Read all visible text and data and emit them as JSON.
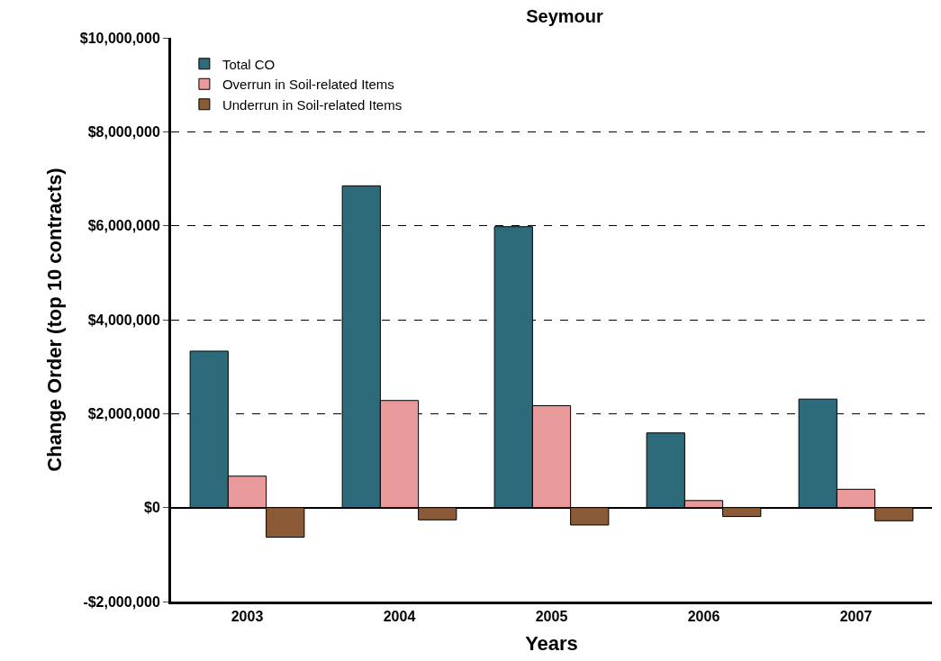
{
  "chart_data": {
    "type": "bar",
    "title": "Seymour",
    "xlabel": "Years",
    "ylabel": "Change Order (top 10 contracts)",
    "categories": [
      "2003",
      "2004",
      "2005",
      "2006",
      "2007"
    ],
    "series": [
      {
        "name": "Total CO",
        "color": "#2e6b7a",
        "values": [
          3330000,
          6850000,
          5980000,
          1590000,
          2310000
        ]
      },
      {
        "name": "Overrun in Soil-related Items",
        "color": "#e89a9a",
        "values": [
          670000,
          2280000,
          2170000,
          150000,
          390000
        ]
      },
      {
        "name": "Underrun in Soil-related Items",
        "color": "#8b5a36",
        "values": [
          -630000,
          -260000,
          -370000,
          -190000,
          -280000
        ]
      }
    ],
    "ylim": [
      -2000000,
      10000000
    ],
    "yticks": [
      {
        "value": -2000000,
        "label": "-$2,000,000"
      },
      {
        "value": 0,
        "label": "$0"
      },
      {
        "value": 2000000,
        "label": "$2,000,000"
      },
      {
        "value": 4000000,
        "label": "$4,000,000"
      },
      {
        "value": 6000000,
        "label": "$6,000,000"
      },
      {
        "value": 8000000,
        "label": "$8,000,000"
      },
      {
        "value": 10000000,
        "label": "$10,000,000"
      }
    ],
    "grid": "y",
    "legend": "top left"
  }
}
